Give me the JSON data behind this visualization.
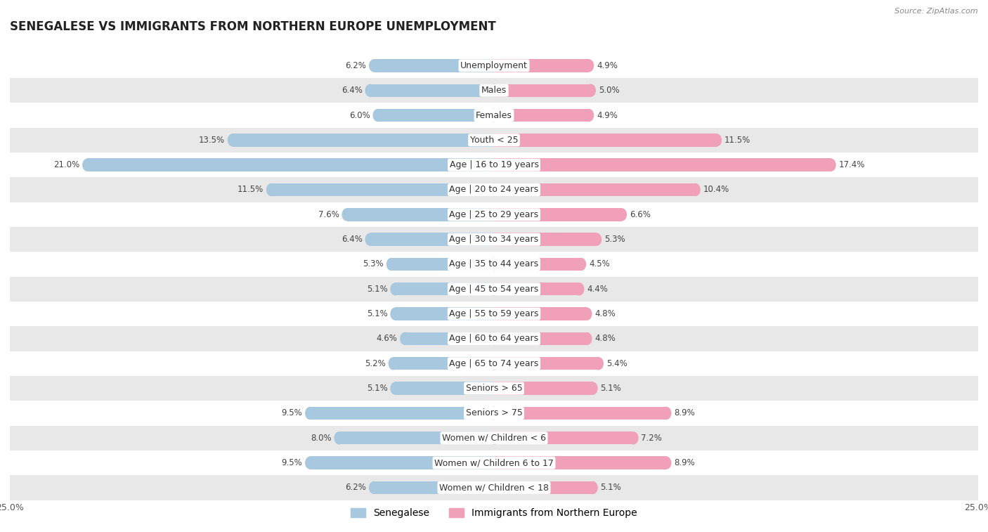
{
  "title": "SENEGALESE VS IMMIGRANTS FROM NORTHERN EUROPE UNEMPLOYMENT",
  "source": "Source: ZipAtlas.com",
  "categories": [
    "Unemployment",
    "Males",
    "Females",
    "Youth < 25",
    "Age | 16 to 19 years",
    "Age | 20 to 24 years",
    "Age | 25 to 29 years",
    "Age | 30 to 34 years",
    "Age | 35 to 44 years",
    "Age | 45 to 54 years",
    "Age | 55 to 59 years",
    "Age | 60 to 64 years",
    "Age | 65 to 74 years",
    "Seniors > 65",
    "Seniors > 75",
    "Women w/ Children < 6",
    "Women w/ Children 6 to 17",
    "Women w/ Children < 18"
  ],
  "senegalese": [
    6.2,
    6.4,
    6.0,
    13.5,
    21.0,
    11.5,
    7.6,
    6.4,
    5.3,
    5.1,
    5.1,
    4.6,
    5.2,
    5.1,
    9.5,
    8.0,
    9.5,
    6.2
  ],
  "northern_europe": [
    4.9,
    5.0,
    4.9,
    11.5,
    17.4,
    10.4,
    6.6,
    5.3,
    4.5,
    4.4,
    4.8,
    4.8,
    5.4,
    5.1,
    8.9,
    7.2,
    8.9,
    5.1
  ],
  "senegalese_color": "#a8c8e0",
  "northern_europe_color": "#f0a0b8",
  "background_color": "#ffffff",
  "row_bg_light": "#ffffff",
  "row_bg_dark": "#e8e8e8",
  "xlim": 25.0,
  "label_fontsize": 9.0,
  "title_fontsize": 12,
  "legend_fontsize": 10,
  "bar_height": 0.52,
  "value_label_fontsize": 8.5
}
